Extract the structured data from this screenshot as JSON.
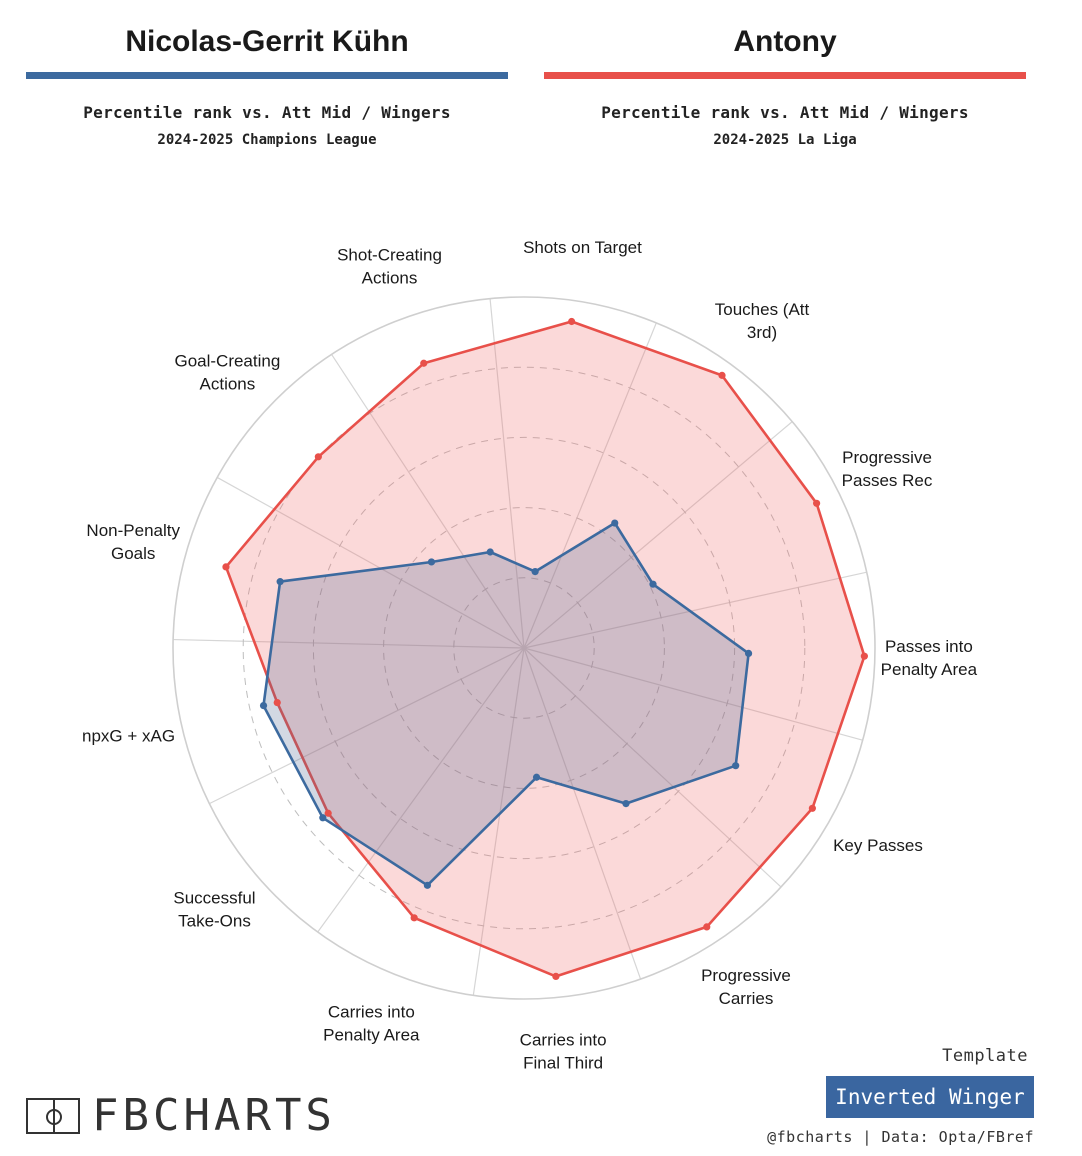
{
  "left": {
    "name": "Nicolas-Gerrit Kühn",
    "color": "#3c6a9f",
    "subtitle": "Percentile rank vs. Att Mid / Wingers",
    "competition": "2024-2025 Champions League"
  },
  "right": {
    "name": "Antony",
    "color": "#e8504a",
    "subtitle": "Percentile rank vs. Att Mid / Wingers",
    "competition": "2024-2025 La Liga"
  },
  "chart_data": {
    "type": "radar",
    "scale": [
      0,
      100
    ],
    "grid_rings": [
      20,
      40,
      60,
      80,
      100
    ],
    "axes": [
      {
        "label": "Shots on Target",
        "lines": [
          "Shots on Target"
        ]
      },
      {
        "label": "Touches (Att 3rd)",
        "lines": [
          "Touches (Att",
          "3rd)"
        ]
      },
      {
        "label": "Progressive Passes Rec",
        "lines": [
          "Progressive",
          "Passes Rec"
        ]
      },
      {
        "label": "Passes into Penalty Area",
        "lines": [
          "Passes into",
          "Penalty Area"
        ]
      },
      {
        "label": "Key Passes",
        "lines": [
          "Key Passes"
        ]
      },
      {
        "label": "Progressive Carries",
        "lines": [
          "Progressive",
          "Carries"
        ]
      },
      {
        "label": "Carries into Final Third",
        "lines": [
          "Carries into",
          "Final Third"
        ]
      },
      {
        "label": "Carries into Penalty Area",
        "lines": [
          "Carries into",
          "Penalty Area"
        ]
      },
      {
        "label": "Successful Take-Ons",
        "lines": [
          "Successful",
          "Take-Ons"
        ]
      },
      {
        "label": "npxG + xAG",
        "lines": [
          "npxG + xAG"
        ]
      },
      {
        "label": "Non-Penalty Goals",
        "lines": [
          "Non-Penalty",
          "Goals"
        ]
      },
      {
        "label": "Goal-Creating Actions",
        "lines": [
          "Goal-Creating",
          "Actions"
        ]
      },
      {
        "label": "Shot-Creating Actions",
        "lines": [
          "Shot-Creating",
          "Actions"
        ]
      }
    ],
    "series": [
      {
        "name": "Antony",
        "color": "#e8504a",
        "fill": "rgba(238,110,110,0.26)",
        "values": [
          94,
          96,
          93,
          97,
          94,
          95,
          94,
          83,
          73,
          72,
          88,
          80,
          86
        ]
      },
      {
        "name": "Nicolas-Gerrit Kühn",
        "color": "#3c6a9f",
        "fill": "rgba(80,105,145,0.26)",
        "values": [
          22,
          44,
          41,
          64,
          69,
          53,
          37,
          73,
          75,
          76,
          72,
          36,
          29
        ]
      }
    ]
  },
  "template": {
    "label": "Template",
    "name": "Inverted Winger"
  },
  "branding": {
    "logo": "FBCHARTS",
    "credit": "@fbcharts | Data: Opta/FBref"
  }
}
